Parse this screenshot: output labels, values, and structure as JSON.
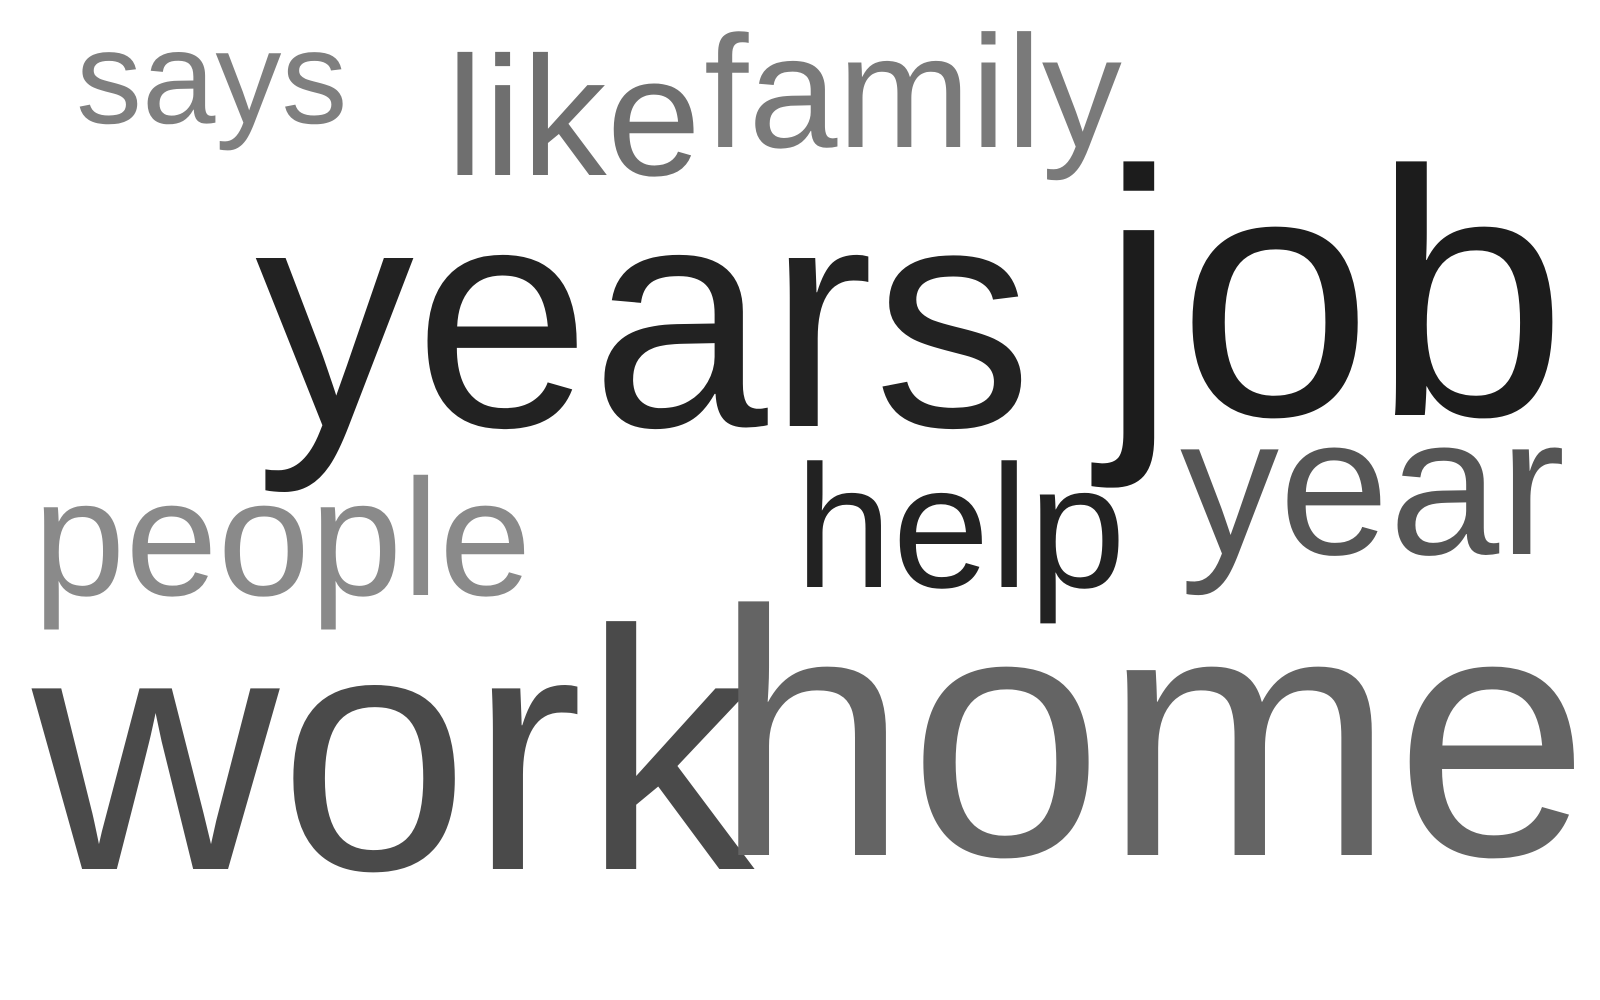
{
  "words": {
    "says": {
      "text": "says",
      "color": "#7f7f7f"
    },
    "like": {
      "text": "like",
      "color": "#6f6f6f"
    },
    "family": {
      "text": "family",
      "color": "#7a7a7a"
    },
    "years": {
      "text": "years",
      "color": "#222222"
    },
    "job": {
      "text": "job",
      "color": "#1c1c1c"
    },
    "people": {
      "text": "people",
      "color": "#8a8a8a"
    },
    "help": {
      "text": "help",
      "color": "#222222"
    },
    "year": {
      "text": "year",
      "color": "#555555"
    },
    "work": {
      "text": "work",
      "color": "#4a4a4a"
    },
    "home": {
      "text": "home",
      "color": "#646464"
    }
  }
}
